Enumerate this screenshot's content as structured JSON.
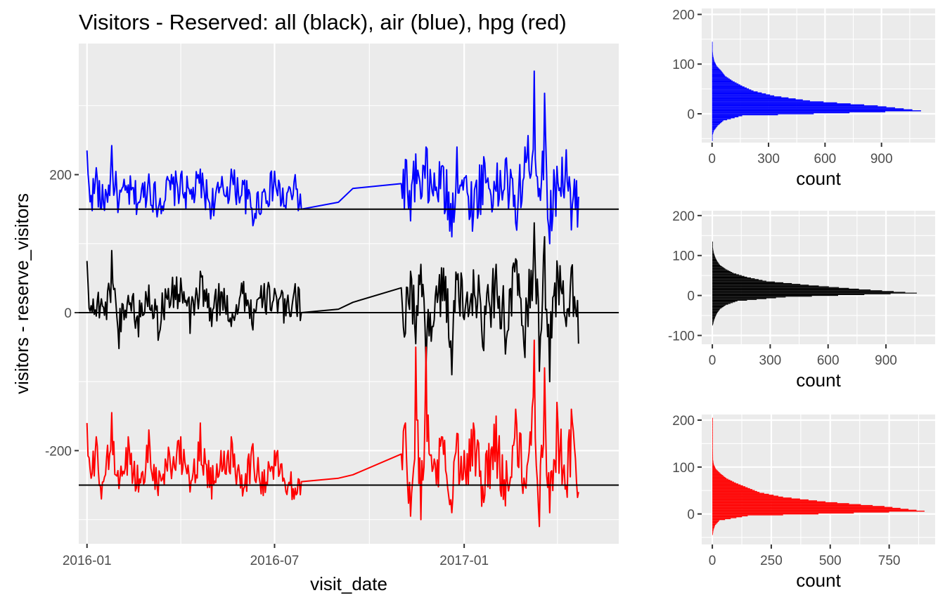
{
  "figure": {
    "title": "Visitors - Reserved: all (black), air (blue), hpg (red)"
  },
  "chart_data": [
    {
      "type": "line",
      "title": "Visitors - Reserved: all (black), air (blue), hpg (red)",
      "xlabel": "visit_date",
      "ylabel": "visitors - reserve_visitors",
      "x_ticks": [
        "2016-01",
        "2016-07",
        "2017-01"
      ],
      "x_range": [
        "2015-12-24",
        "2017-05-31"
      ],
      "y_ticks": [
        -200,
        0,
        200
      ],
      "ylim": [
        -335,
        390
      ],
      "grid": true,
      "legend": "none",
      "colors": {
        "all": "#000000",
        "air": "#0000ff",
        "hpg": "#ff0000"
      },
      "series": [
        {
          "key": "air",
          "color": "#0000ff",
          "offset": 150,
          "x": [
            "2016-01-01",
            "2016-01-05",
            "2016-01-10",
            "2016-01-15",
            "2016-01-20",
            "2016-01-25",
            "2016-02-01",
            "2016-02-10",
            "2016-02-20",
            "2016-03-01",
            "2016-03-10",
            "2016-03-20",
            "2016-04-01",
            "2016-04-10",
            "2016-04-20",
            "2016-05-01",
            "2016-05-10",
            "2016-05-20",
            "2016-06-01",
            "2016-06-10",
            "2016-06-20",
            "2016-07-01",
            "2016-07-10",
            "2016-07-20",
            "2016-07-27",
            "2016-09-01",
            "2016-09-15",
            "2016-11-01",
            "2016-11-05",
            "2016-11-10",
            "2016-11-15",
            "2016-11-20",
            "2016-11-25",
            "2016-12-01",
            "2016-12-10",
            "2016-12-20",
            "2016-12-25",
            "2017-01-01",
            "2017-01-10",
            "2017-01-20",
            "2017-02-01",
            "2017-02-10",
            "2017-02-20",
            "2017-03-01",
            "2017-03-10",
            "2017-03-15",
            "2017-03-20",
            "2017-03-25",
            "2017-04-01",
            "2017-04-10",
            "2017-04-15",
            "2017-04-22"
          ],
          "values": [
            235,
            170,
            210,
            150,
            172,
            242,
            160,
            185,
            160,
            201,
            150,
            192,
            200,
            172,
            208,
            150,
            182,
            208,
            186,
            126,
            175,
            205,
            154,
            190,
            150,
            160,
            180,
            187,
            222,
            133,
            230,
            165,
            240,
            175,
            212,
            110,
            240,
            195,
            140,
            226,
            176,
            222,
            130,
            240,
            350,
            180,
            318,
            100,
            212,
            236,
            120,
            168
          ]
        },
        {
          "key": "all",
          "color": "#000000",
          "offset": 0,
          "x": [
            "2016-01-01",
            "2016-01-05",
            "2016-01-10",
            "2016-01-15",
            "2016-01-20",
            "2016-01-25",
            "2016-02-01",
            "2016-02-10",
            "2016-02-20",
            "2016-03-01",
            "2016-03-10",
            "2016-03-20",
            "2016-04-01",
            "2016-04-10",
            "2016-04-20",
            "2016-05-01",
            "2016-05-10",
            "2016-05-20",
            "2016-06-01",
            "2016-06-10",
            "2016-06-20",
            "2016-07-01",
            "2016-07-10",
            "2016-07-20",
            "2016-07-27",
            "2016-09-01",
            "2016-09-15",
            "2016-11-01",
            "2016-11-05",
            "2016-11-10",
            "2016-11-15",
            "2016-11-20",
            "2016-11-25",
            "2016-12-01",
            "2016-12-10",
            "2016-12-20",
            "2016-12-25",
            "2017-01-01",
            "2017-01-10",
            "2017-01-20",
            "2017-02-01",
            "2017-02-10",
            "2017-02-20",
            "2017-03-01",
            "2017-03-10",
            "2017-03-15",
            "2017-03-20",
            "2017-03-25",
            "2017-04-01",
            "2017-04-10",
            "2017-04-15",
            "2017-04-22"
          ],
          "values": [
            75,
            10,
            -5,
            20,
            -10,
            90,
            -52,
            25,
            -35,
            40,
            -40,
            35,
            50,
            -30,
            60,
            -20,
            30,
            -20,
            45,
            -25,
            20,
            35,
            -15,
            30,
            0,
            5,
            15,
            36,
            -30,
            60,
            -45,
            70,
            -75,
            -20,
            65,
            -90,
            48,
            -10,
            62,
            -55,
            70,
            -60,
            78,
            -65,
            130,
            -85,
            110,
            -100,
            75,
            -20,
            65,
            -45
          ]
        },
        {
          "key": "hpg",
          "color": "#ff0000",
          "offset": -250,
          "x": [
            "2016-01-01",
            "2016-01-05",
            "2016-01-10",
            "2016-01-15",
            "2016-01-20",
            "2016-01-25",
            "2016-02-01",
            "2016-02-10",
            "2016-02-20",
            "2016-03-01",
            "2016-03-10",
            "2016-03-20",
            "2016-04-01",
            "2016-04-10",
            "2016-04-20",
            "2016-05-01",
            "2016-05-10",
            "2016-05-20",
            "2016-06-01",
            "2016-06-10",
            "2016-06-20",
            "2016-07-01",
            "2016-07-10",
            "2016-07-20",
            "2016-07-27",
            "2016-09-01",
            "2016-09-15",
            "2016-11-01",
            "2016-11-05",
            "2016-11-10",
            "2016-11-15",
            "2016-11-20",
            "2016-11-25",
            "2016-12-01",
            "2016-12-10",
            "2016-12-20",
            "2016-12-25",
            "2017-01-01",
            "2017-01-10",
            "2017-01-20",
            "2017-02-01",
            "2017-02-10",
            "2017-02-20",
            "2017-03-01",
            "2017-03-10",
            "2017-03-15",
            "2017-03-20",
            "2017-03-25",
            "2017-04-01",
            "2017-04-10",
            "2017-04-15",
            "2017-04-22"
          ],
          "values": [
            -160,
            -240,
            -180,
            -270,
            -210,
            -145,
            -255,
            -180,
            -260,
            -170,
            -265,
            -195,
            -180,
            -260,
            -160,
            -270,
            -200,
            -180,
            -255,
            -190,
            -265,
            -200,
            -240,
            -270,
            -245,
            -240,
            -235,
            -205,
            -160,
            -295,
            -50,
            -300,
            -50,
            -230,
            -180,
            -290,
            -175,
            -200,
            -160,
            -275,
            -150,
            -280,
            -140,
            -250,
            -40,
            -310,
            -80,
            -290,
            -130,
            -250,
            -140,
            -260
          ]
        }
      ]
    },
    {
      "type": "bar",
      "orientation": "horizontal",
      "color": "#0000ff",
      "xlabel": "count",
      "x_ticks": [
        0,
        300,
        600,
        900
      ],
      "y_ticks": [
        0,
        100,
        200
      ],
      "xlim": [
        -55,
        1185
      ],
      "ylim": [
        -58,
        212
      ],
      "bins": [
        -55,
        -45,
        -35,
        -25,
        -15,
        -5,
        5,
        15,
        25,
        35,
        45,
        55,
        65,
        75,
        85,
        95,
        105,
        115,
        125,
        135
      ],
      "values": [
        1,
        2,
        10,
        30,
        60,
        160,
        1110,
        880,
        520,
        330,
        220,
        160,
        110,
        70,
        50,
        25,
        12,
        6,
        3,
        1
      ]
    },
    {
      "type": "bar",
      "orientation": "horizontal",
      "color": "#000000",
      "xlabel": "count",
      "x_ticks": [
        0,
        300,
        600,
        900
      ],
      "y_ticks": [
        -100,
        0,
        100,
        200
      ],
      "xlim": [
        -55,
        1155
      ],
      "ylim": [
        -122,
        212
      ],
      "bins": [
        -75,
        -65,
        -55,
        -45,
        -35,
        -25,
        -15,
        -5,
        5,
        15,
        25,
        35,
        45,
        55,
        65,
        75,
        85,
        95,
        105,
        115,
        125
      ],
      "values": [
        3,
        8,
        15,
        25,
        40,
        70,
        130,
        380,
        1060,
        760,
        500,
        280,
        180,
        110,
        70,
        40,
        25,
        15,
        8,
        4,
        2
      ]
    },
    {
      "type": "bar",
      "orientation": "horizontal",
      "color": "#ff0000",
      "xlabel": "count",
      "x_ticks": [
        0,
        250,
        500,
        750
      ],
      "y_ticks": [
        0,
        100,
        200
      ],
      "xlim": [
        -45,
        945
      ],
      "ylim": [
        -65,
        212
      ],
      "bins": [
        -45,
        -35,
        -25,
        -15,
        -5,
        5,
        15,
        25,
        35,
        45,
        55,
        65,
        75,
        85,
        95,
        105,
        115,
        195
      ],
      "values": [
        2,
        5,
        12,
        30,
        150,
        900,
        730,
        480,
        300,
        200,
        150,
        100,
        60,
        35,
        15,
        6,
        3,
        1
      ]
    }
  ]
}
